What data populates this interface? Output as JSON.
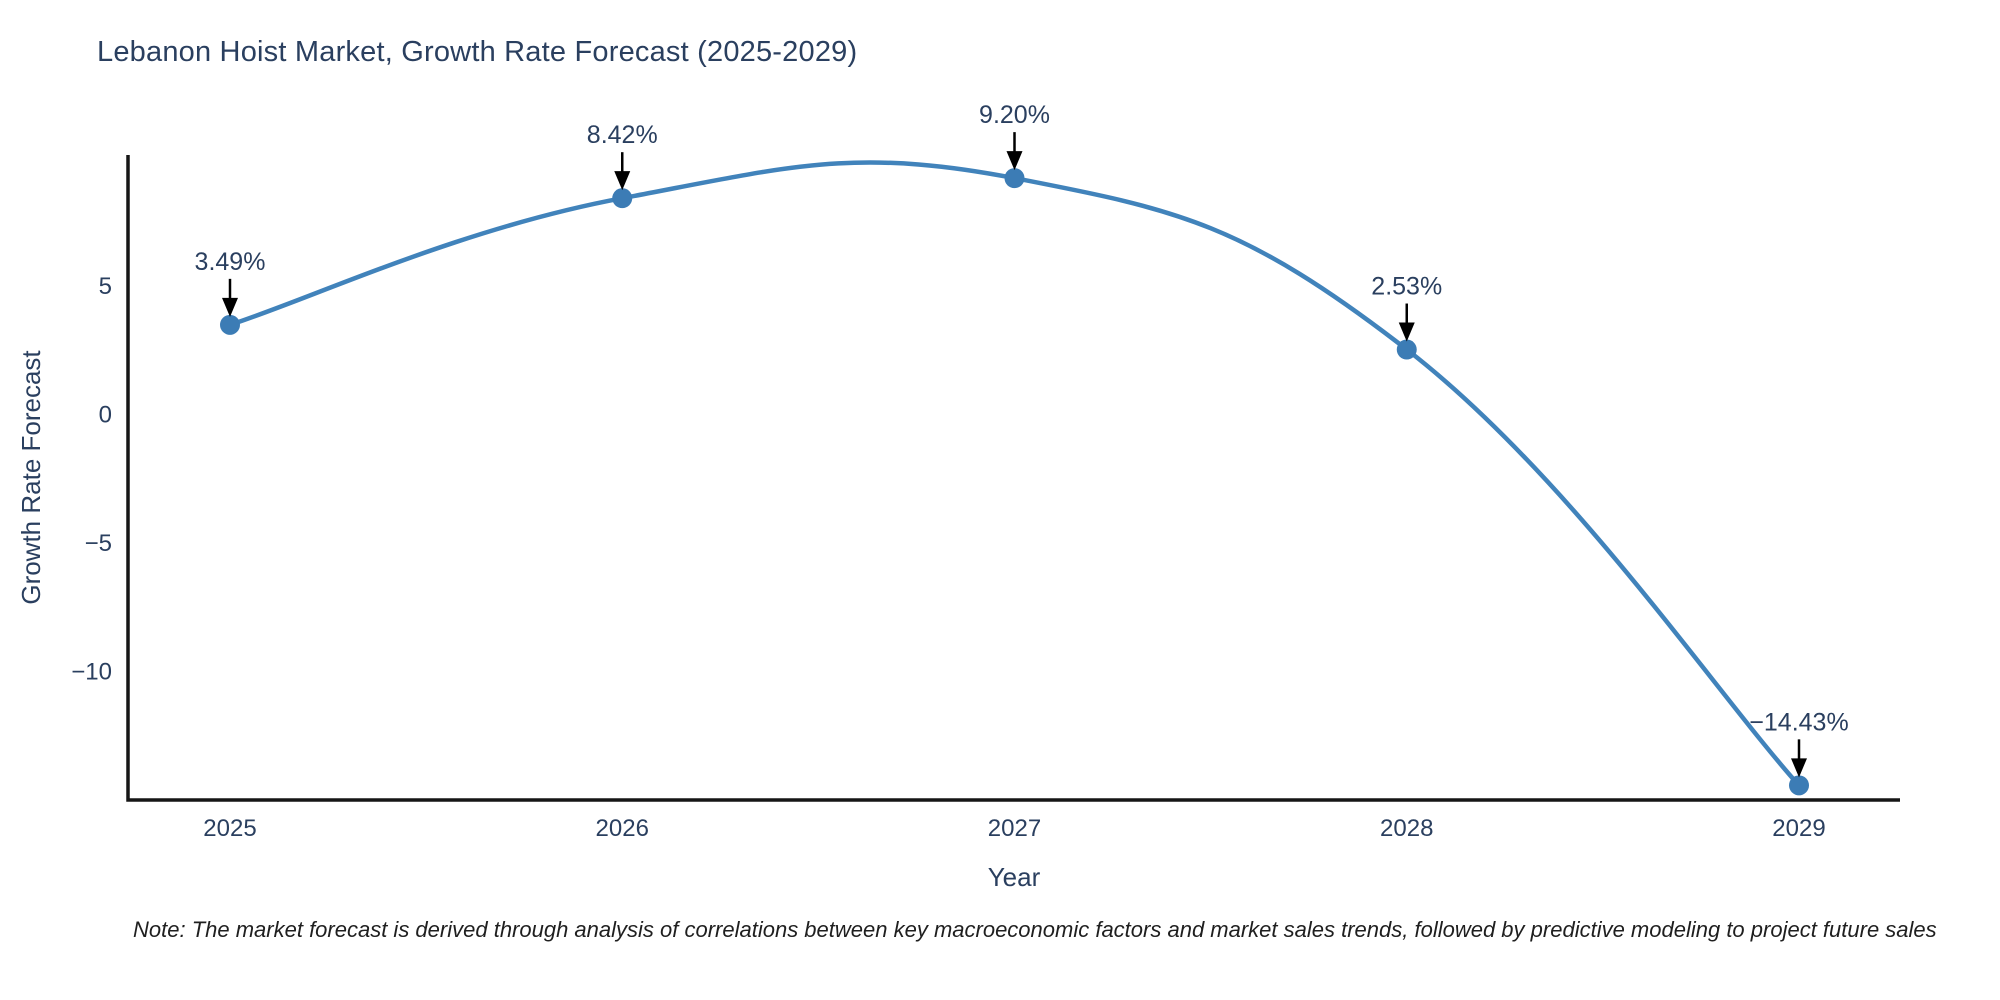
{
  "chart_data": {
    "type": "line",
    "title": "Lebanon Hoist Market, Growth Rate Forecast (2025-2029)",
    "xlabel": "Year",
    "ylabel": "Growth Rate Forecast",
    "categories": [
      "2025",
      "2026",
      "2027",
      "2028",
      "2029"
    ],
    "series": [
      {
        "name": "Growth Rate Forecast",
        "values": [
          3.49,
          8.42,
          9.2,
          2.53,
          -14.43
        ],
        "point_labels": [
          "3.49%",
          "8.42%",
          "9.20%",
          "2.53%",
          "−14.43%"
        ]
      }
    ],
    "yticks": [
      5,
      0,
      -5,
      -10
    ],
    "ylim": [
      -15,
      10.1
    ],
    "line_shape": "spline",
    "grid": false,
    "legend_position": "none",
    "colors": {
      "line": "#4183bb",
      "marker": "#3c7cb5",
      "axis": "#161616",
      "text": "#2a3f5f",
      "annotation_arrow": "#000000",
      "background": "#ffffff"
    }
  },
  "note": {
    "text": "Note: The market forecast is derived through analysis of correlations between key macroeconomic factors and market sales trends, followed by predictive modeling to project future sales"
  }
}
